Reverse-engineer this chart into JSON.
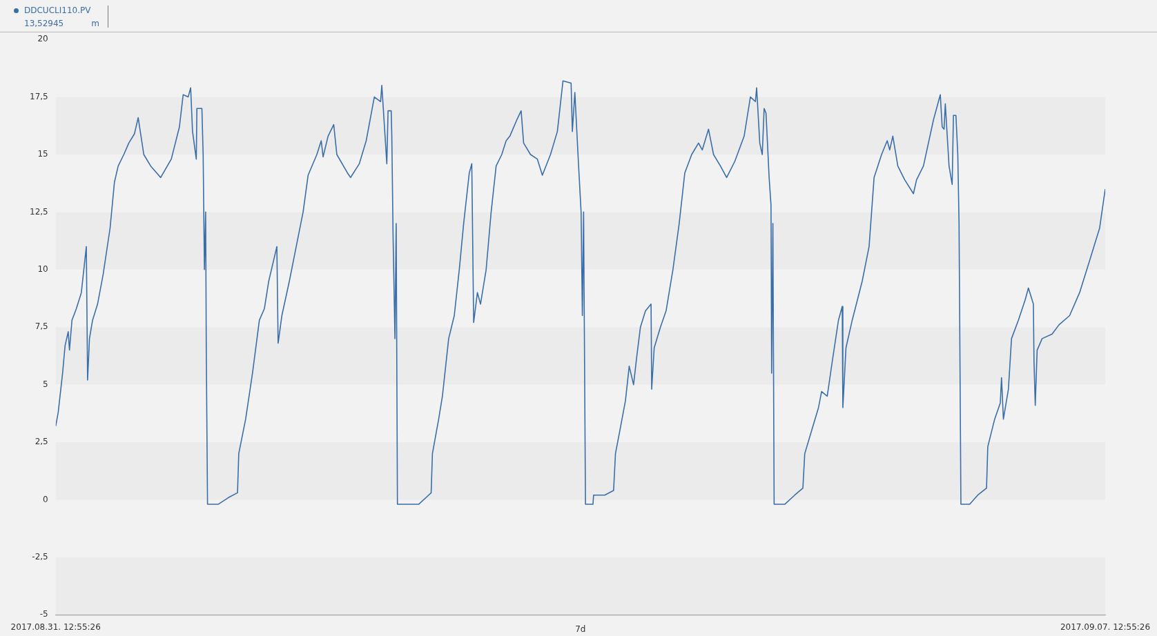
{
  "chart_data": {
    "type": "line",
    "xlabel": "7d",
    "legend": "top left",
    "marker": "none",
    "line_style": "solid",
    "annotations": [
      "13,52945",
      "m"
    ],
    "xlim": [
      "2017-08-31T12:55",
      "2017-09-07T12:55"
    ],
    "xticks": [
      {
        "value": "2017-08-31T12:55",
        "label": "2017.08.31. 12:55:26"
      },
      {
        "value": "2017-09-07T12:55",
        "label": "2017.09.07. 12:55:26"
      }
    ],
    "ylim": [
      -5,
      20
    ],
    "yticks": [
      -5,
      {
        "value": -2.5,
        "label": "-2,5"
      },
      0,
      {
        "value": 2.5,
        "label": "2,5"
      },
      5,
      {
        "value": 7.5,
        "label": "7,5"
      },
      10,
      {
        "value": 12.5,
        "label": "12,5"
      },
      15,
      {
        "value": 17.5,
        "label": "17,5"
      },
      20
    ],
    "series": [
      {
        "name": "DDCUCLI110.PV",
        "color": "#3a6ea8",
        "x": [
          "2017-08-31T12:55",
          "2017-08-31T13:19",
          "2017-08-31T14:01",
          "2017-08-31T14:25",
          "2017-08-31T14:55",
          "2017-08-31T15:07",
          "2017-08-31T15:31",
          "2017-08-31T16:13",
          "2017-08-31T17:01",
          "2017-08-31T17:49",
          "2017-08-31T18:01",
          "2017-08-31T18:19",
          "2017-08-31T18:49",
          "2017-08-31T19:37",
          "2017-08-31T20:31",
          "2017-08-31T21:37",
          "2017-08-31T22:19",
          "2017-08-31T22:55",
          "2017-08-31T23:49",
          "2017-09-01T00:37",
          "2017-09-01T01:31",
          "2017-09-01T02:07",
          "2017-09-01T03:01",
          "2017-09-01T04:07",
          "2017-09-01T05:43",
          "2017-09-01T07:25",
          "2017-09-01T08:43",
          "2017-09-01T09:19",
          "2017-09-01T10:07",
          "2017-09-01T10:31",
          "2017-09-01T10:49",
          "2017-09-01T11:25",
          "2017-09-01T11:31",
          "2017-09-01T12:19",
          "2017-09-01T12:31",
          "2017-09-01T12:43",
          "2017-09-01T12:55",
          "2017-09-01T13:01",
          "2017-09-01T13:13",
          "2017-09-01T14:55",
          "2017-09-01T16:37",
          "2017-09-01T18:01",
          "2017-09-01T18:13",
          "2017-09-01T19:19",
          "2017-09-01T20:25",
          "2017-09-01T21:31",
          "2017-09-01T22:19",
          "2017-09-01T23:01",
          "2017-09-02T00:19",
          "2017-09-02T00:31",
          "2017-09-02T01:07",
          "2017-09-02T02:19",
          "2017-09-02T03:25",
          "2017-09-02T04:31",
          "2017-09-02T05:19",
          "2017-09-02T06:43",
          "2017-09-02T07:25",
          "2017-09-02T07:43",
          "2017-09-02T08:31",
          "2017-09-02T09:25",
          "2017-09-02T09:55",
          "2017-09-02T11:37",
          "2017-09-02T12:07",
          "2017-09-02T13:31",
          "2017-09-02T14:37",
          "2017-09-02T15:55",
          "2017-09-02T16:55",
          "2017-09-02T17:07",
          "2017-09-02T17:55",
          "2017-09-02T18:07",
          "2017-09-02T18:37",
          "2017-09-02T18:43",
          "2017-09-02T18:55",
          "2017-09-02T19:13",
          "2017-09-02T19:25",
          "2017-09-02T19:37",
          "2017-09-02T23:01",
          "2017-09-03T00:37",
          "2017-09-03T01:01",
          "2017-09-03T01:13",
          "2017-09-03T02:13",
          "2017-09-03T02:49",
          "2017-09-03T03:49",
          "2017-09-03T04:43",
          "2017-09-03T05:31",
          "2017-09-03T06:13",
          "2017-09-03T07:07",
          "2017-09-03T07:31",
          "2017-09-03T07:49",
          "2017-09-03T08:25",
          "2017-09-03T08:55",
          "2017-09-03T09:49",
          "2017-09-03T10:37",
          "2017-09-03T11:25",
          "2017-09-03T12:19",
          "2017-09-03T13:01",
          "2017-09-03T13:37",
          "2017-09-03T14:43",
          "2017-09-03T15:25",
          "2017-09-03T15:49",
          "2017-09-03T16:55",
          "2017-09-03T18:01",
          "2017-09-03T18:49",
          "2017-09-03T20:07",
          "2017-09-03T21:13",
          "2017-09-03T22:07",
          "2017-09-03T23:25",
          "2017-09-03T23:37",
          "2017-09-04T00:01",
          "2017-09-04T00:37",
          "2017-09-04T01:01",
          "2017-09-04T01:13",
          "2017-09-04T01:25",
          "2017-09-04T01:43",
          "2017-09-04T02:55",
          "2017-09-04T03:01",
          "2017-09-04T04:49",
          "2017-09-04T06:13",
          "2017-09-04T06:31",
          "2017-09-04T07:13",
          "2017-09-04T08:07",
          "2017-09-04T08:43",
          "2017-09-04T09:25",
          "2017-09-04T09:55",
          "2017-09-04T10:31",
          "2017-09-04T11:19",
          "2017-09-04T12:13",
          "2017-09-04T12:19",
          "2017-09-04T12:43",
          "2017-09-04T13:43",
          "2017-09-04T14:37",
          "2017-09-04T15:43",
          "2017-09-04T16:43",
          "2017-09-04T17:37",
          "2017-09-04T18:43",
          "2017-09-04T19:49",
          "2017-09-04T20:25",
          "2017-09-04T21:25",
          "2017-09-04T22:13",
          "2017-09-04T23:19",
          "2017-09-05T00:19",
          "2017-09-05T01:37",
          "2017-09-05T03:07",
          "2017-09-05T04:07",
          "2017-09-05T04:55",
          "2017-09-05T05:07",
          "2017-09-05T05:37",
          "2017-09-05T06:01",
          "2017-09-05T06:19",
          "2017-09-05T06:37",
          "2017-09-05T07:07",
          "2017-09-05T07:25",
          "2017-09-05T07:31",
          "2017-09-05T07:43",
          "2017-09-05T07:55",
          "2017-09-05T09:37",
          "2017-09-05T11:13",
          "2017-09-05T12:31",
          "2017-09-05T12:49",
          "2017-09-05T13:55",
          "2017-09-05T15:01",
          "2017-09-05T15:31",
          "2017-09-05T16:25",
          "2017-09-05T17:13",
          "2017-09-05T18:13",
          "2017-09-05T18:49",
          "2017-09-05T18:55",
          "2017-09-05T19:25",
          "2017-09-05T20:25",
          "2017-09-05T22:01",
          "2017-09-05T23:07",
          "2017-09-05T23:55",
          "2017-09-06T01:07",
          "2017-09-06T02:01",
          "2017-09-06T02:25",
          "2017-09-06T02:55",
          "2017-09-06T03:43",
          "2017-09-06T04:49",
          "2017-09-06T06:13",
          "2017-09-06T06:43",
          "2017-09-06T07:49",
          "2017-09-06T09:25",
          "2017-09-06T10:31",
          "2017-09-06T10:49",
          "2017-09-06T11:07",
          "2017-09-06T11:19",
          "2017-09-06T11:55",
          "2017-09-06T12:25",
          "2017-09-06T12:37",
          "2017-09-06T13:01",
          "2017-09-06T13:19",
          "2017-09-06T13:31",
          "2017-09-06T13:37",
          "2017-09-06T13:49",
          "2017-09-06T15:13",
          "2017-09-06T16:31",
          "2017-09-06T17:55",
          "2017-09-06T18:07",
          "2017-09-06T19:13",
          "2017-09-06T20:07",
          "2017-09-06T20:19",
          "2017-09-06T20:37",
          "2017-09-06T21:25",
          "2017-09-06T21:55",
          "2017-09-06T23:01",
          "2017-09-07T00:07",
          "2017-09-07T00:37",
          "2017-09-07T01:25",
          "2017-09-07T01:31",
          "2017-09-07T01:43",
          "2017-09-07T02:01",
          "2017-09-07T02:49",
          "2017-09-07T04:25",
          "2017-09-07T05:31",
          "2017-09-07T07:13",
          "2017-09-07T08:49",
          "2017-09-07T10:19",
          "2017-09-07T12:01",
          "2017-09-07T12:55"
        ],
        "values": [
          3.2,
          3.8,
          5.5,
          6.7,
          7.3,
          6.5,
          7.8,
          8.3,
          9.0,
          11.0,
          5.2,
          7.0,
          7.8,
          8.5,
          9.8,
          11.8,
          13.8,
          14.5,
          15.0,
          15.5,
          15.9,
          16.6,
          15.0,
          14.5,
          14.0,
          14.8,
          16.2,
          17.6,
          17.5,
          17.9,
          16.0,
          14.8,
          17.0,
          17.0,
          15.0,
          10.0,
          12.5,
          6.5,
          -0.2,
          -0.2,
          0.1,
          0.3,
          2.0,
          3.5,
          5.5,
          7.8,
          8.3,
          9.5,
          11.0,
          6.8,
          8.0,
          9.5,
          11.0,
          12.5,
          14.1,
          15.0,
          15.6,
          14.9,
          15.8,
          16.3,
          15.0,
          14.2,
          14.0,
          14.6,
          15.6,
          17.5,
          17.3,
          18.0,
          14.6,
          16.9,
          16.9,
          15.8,
          11.5,
          7.0,
          12.0,
          -0.2,
          -0.2,
          0.2,
          0.3,
          2.0,
          3.5,
          4.5,
          7.0,
          8.0,
          10.0,
          12.0,
          14.2,
          14.6,
          7.7,
          9.0,
          8.5,
          10.0,
          12.5,
          14.5,
          15.0,
          15.6,
          15.8,
          16.5,
          16.9,
          15.5,
          15.0,
          14.8,
          14.1,
          15.0,
          16.0,
          18.2,
          18.1,
          16.0,
          17.7,
          14.5,
          12.5,
          8.0,
          12.5,
          -0.2,
          -0.2,
          0.2,
          0.2,
          0.4,
          2.0,
          3.0,
          4.3,
          5.8,
          5.0,
          6.2,
          7.5,
          8.2,
          8.5,
          4.8,
          6.6,
          7.5,
          8.2,
          10.0,
          12.0,
          14.2,
          15.0,
          15.5,
          15.2,
          16.1,
          15.0,
          14.5,
          14.0,
          14.7,
          15.8,
          17.5,
          17.3,
          17.9,
          15.5,
          15.0,
          17.0,
          16.8,
          14.0,
          12.8,
          5.5,
          12.0,
          -0.2,
          -0.2,
          0.2,
          0.5,
          2.0,
          3.0,
          4.0,
          4.7,
          4.5,
          6.0,
          7.8,
          8.4,
          4.0,
          6.6,
          7.8,
          9.5,
          11.0,
          14.0,
          15.0,
          15.6,
          15.2,
          15.8,
          14.5,
          13.9,
          13.3,
          13.9,
          14.5,
          16.5,
          17.6,
          16.2,
          16.1,
          17.2,
          14.5,
          13.7,
          16.7,
          16.7,
          15.0,
          12.0,
          8.0,
          -0.2,
          -0.2,
          0.2,
          0.5,
          2.3,
          3.5,
          4.2,
          5.3,
          3.5,
          4.8,
          7.0,
          7.8,
          8.7,
          9.2,
          8.5,
          6.0,
          4.1,
          6.5,
          7.0,
          7.2,
          7.6,
          8.0,
          9.0,
          10.3,
          11.8,
          13.5
        ]
      }
    ]
  }
}
